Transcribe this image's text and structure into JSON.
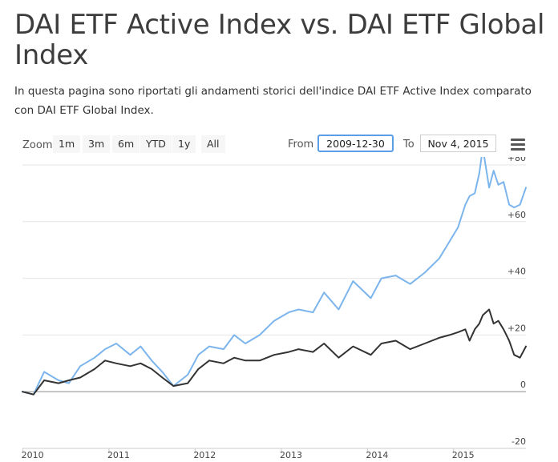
{
  "page": {
    "title": "DAI ETF Active Index vs. DAI ETF Global Index",
    "intro": "In questa pagina sono riportati gli andamenti storici dell'indice DAI ETF Active Index comparato con DAI ETF Global Index."
  },
  "toolbar": {
    "zoom_label": "Zoom",
    "zoom_buttons": [
      "1m",
      "3m",
      "6m",
      "YTD",
      "1y",
      "All"
    ],
    "from_label": "From",
    "from_value": "2009-12-30",
    "to_label": "To",
    "to_value": "Nov 4, 2015",
    "menu_icon": "hamburger-menu-icon"
  },
  "chart_data": {
    "type": "line",
    "title": "",
    "xlabel": "",
    "ylabel": "",
    "x_ticks": [
      "2010",
      "2011",
      "2012",
      "2013",
      "2014",
      "2015"
    ],
    "y_ticks": [
      "+80",
      "+60",
      "+40",
      "+20",
      "0",
      "-20"
    ],
    "ylim": [
      -20,
      80
    ],
    "xlim": [
      "2009-12-30",
      "2015-11-04"
    ],
    "y_axis_side": "right",
    "grid": true,
    "colors": {
      "series_1": "#7cb5ec",
      "series_2": "#333333",
      "zero_line": "#999999"
    },
    "series": [
      {
        "color": "#7cb5ec",
        "x": [
          "2009-12-30",
          "2010-02-15",
          "2010-04-01",
          "2010-06-01",
          "2010-07-15",
          "2010-09-01",
          "2010-11-01",
          "2010-12-15",
          "2011-02-01",
          "2011-04-01",
          "2011-05-15",
          "2011-07-01",
          "2011-08-15",
          "2011-10-01",
          "2011-12-01",
          "2012-01-15",
          "2012-03-01",
          "2012-05-01",
          "2012-06-15",
          "2012-08-01",
          "2012-10-01",
          "2012-12-01",
          "2013-02-01",
          "2013-03-15",
          "2013-05-15",
          "2013-07-01",
          "2013-09-01",
          "2013-11-01",
          "2014-01-15",
          "2014-03-01",
          "2014-05-01",
          "2014-07-01",
          "2014-09-01",
          "2014-11-01",
          "2014-12-15",
          "2015-01-20",
          "2015-02-20",
          "2015-03-10",
          "2015-04-01",
          "2015-04-20",
          "2015-05-05",
          "2015-06-01",
          "2015-06-20",
          "2015-07-10",
          "2015-08-01",
          "2015-08-25",
          "2015-09-15",
          "2015-10-10",
          "2015-11-04"
        ],
        "y": [
          0,
          -1,
          7,
          4,
          3,
          9,
          12,
          15,
          17,
          13,
          16,
          11,
          7,
          2,
          6,
          13,
          16,
          15,
          20,
          17,
          20,
          25,
          28,
          29,
          28,
          35,
          29,
          39,
          33,
          40,
          41,
          38,
          42,
          47,
          53,
          58,
          66,
          69,
          70,
          77,
          86,
          72,
          78,
          73,
          74,
          66,
          65,
          66,
          72
        ]
      },
      {
        "color": "#333333",
        "x": [
          "2009-12-30",
          "2010-02-15",
          "2010-04-01",
          "2010-06-01",
          "2010-07-15",
          "2010-09-01",
          "2010-11-01",
          "2010-12-15",
          "2011-02-01",
          "2011-04-01",
          "2011-05-15",
          "2011-07-01",
          "2011-08-15",
          "2011-10-01",
          "2011-12-01",
          "2012-01-15",
          "2012-03-01",
          "2012-05-01",
          "2012-06-15",
          "2012-08-01",
          "2012-10-01",
          "2012-12-01",
          "2013-02-01",
          "2013-03-15",
          "2013-05-15",
          "2013-07-01",
          "2013-09-01",
          "2013-11-01",
          "2014-01-15",
          "2014-03-01",
          "2014-05-01",
          "2014-07-01",
          "2014-09-01",
          "2014-11-01",
          "2014-12-15",
          "2015-01-20",
          "2015-02-20",
          "2015-03-10",
          "2015-04-01",
          "2015-04-20",
          "2015-05-05",
          "2015-06-01",
          "2015-06-20",
          "2015-07-10",
          "2015-08-01",
          "2015-08-25",
          "2015-09-15",
          "2015-10-10",
          "2015-11-04"
        ],
        "y": [
          0,
          -1,
          4,
          3,
          4,
          5,
          8,
          11,
          10,
          9,
          10,
          8,
          5,
          2,
          3,
          8,
          11,
          10,
          12,
          11,
          11,
          13,
          14,
          15,
          14,
          17,
          12,
          16,
          13,
          17,
          18,
          15,
          17,
          19,
          20,
          21,
          22,
          18,
          22,
          24,
          27,
          29,
          24,
          25,
          22,
          18,
          13,
          12,
          16
        ]
      }
    ]
  }
}
